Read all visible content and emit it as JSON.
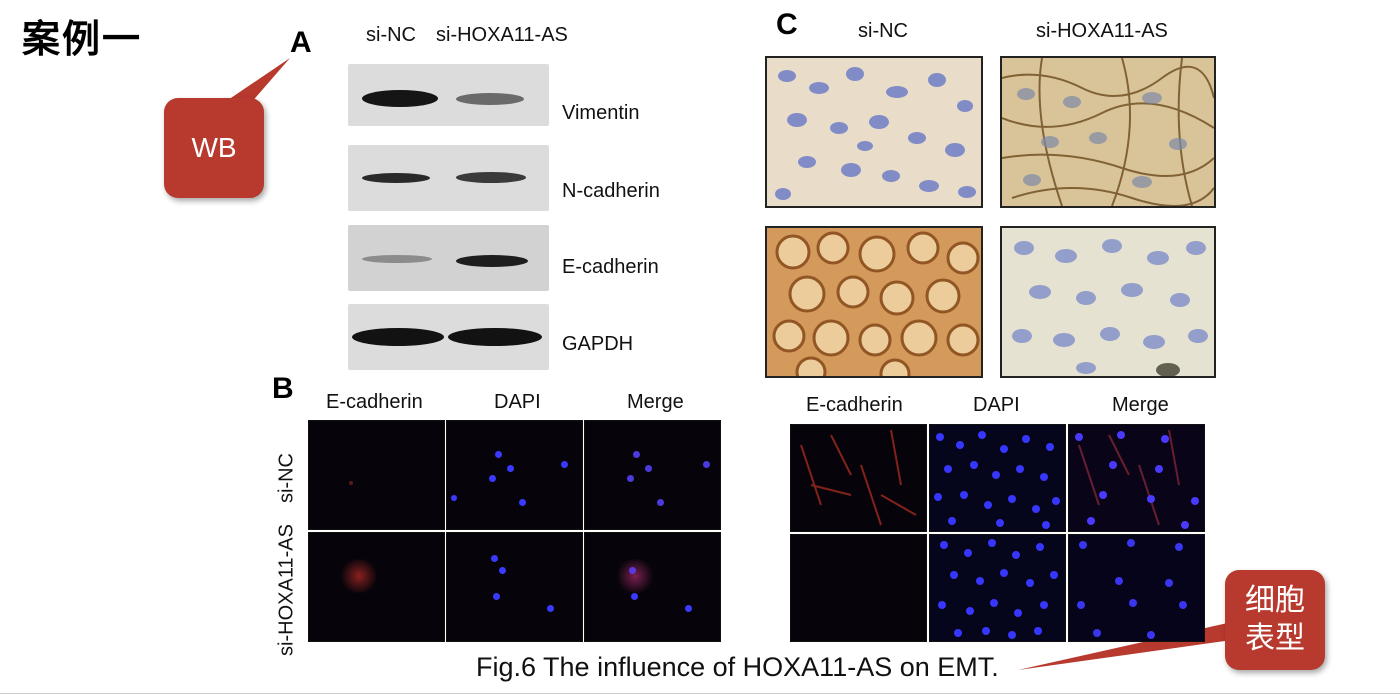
{
  "slide": {
    "title": "案例一",
    "caption": "Fig.6 The influence of HOXA11-AS on EMT."
  },
  "callouts": {
    "wb": "WB",
    "cell_line1": "细胞",
    "cell_line2": "表型",
    "color": "#b8392e"
  },
  "panelA": {
    "letter": "A",
    "columns": [
      "si-NC",
      "si-HOXA11-AS"
    ],
    "bands": [
      "Vimentin",
      "N-cadherin",
      "E-cadherin",
      "GAPDH"
    ]
  },
  "panelB": {
    "letter": "B",
    "columns": [
      "E-cadherin",
      "DAPI",
      "Merge"
    ],
    "rows": [
      "si-NC",
      "si-HOXA11-AS"
    ]
  },
  "panelC": {
    "letter": "C",
    "columns": [
      "si-NC",
      "si-HOXA11-AS"
    ]
  },
  "panelD": {
    "columns": [
      "E-cadherin",
      "DAPI",
      "Merge"
    ]
  },
  "colors": {
    "blot_background": "#dcdcdc",
    "band": "#1e1e1e",
    "if_background": "#06040a",
    "dapi": "#3a3aff",
    "ecad": "#c0392b",
    "ihc_brown": "#b07a3e",
    "nucleus_blue": "#6f7fc6"
  }
}
